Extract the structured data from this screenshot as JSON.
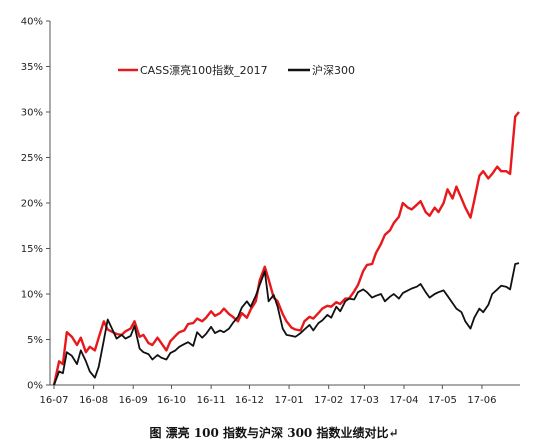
{
  "caption": "图   漂亮 100 指数与沪深 300 指数业绩对比↵",
  "chart_data": {
    "type": "line",
    "title": "",
    "xlabel": "",
    "ylabel": "",
    "ylim": [
      0,
      40
    ],
    "yticks": [
      "0%",
      "5%",
      "10%",
      "15%",
      "20%",
      "25%",
      "30%",
      "35%",
      "40%"
    ],
    "xticks": [
      "16-07",
      "16-08",
      "16-09",
      "16-10",
      "16-11",
      "16-12",
      "17-01",
      "17-02",
      "17-03",
      "17-04",
      "17-05",
      "17-06"
    ],
    "grid": false,
    "legend_position": "top-left",
    "x": [
      "2016-07-01",
      "2016-07-05",
      "2016-07-08",
      "2016-07-11",
      "2016-07-15",
      "2016-07-19",
      "2016-07-22",
      "2016-07-26",
      "2016-07-29",
      "2016-08-02",
      "2016-08-05",
      "2016-08-09",
      "2016-08-12",
      "2016-08-16",
      "2016-08-19",
      "2016-08-23",
      "2016-08-26",
      "2016-08-30",
      "2016-09-02",
      "2016-09-06",
      "2016-09-09",
      "2016-09-13",
      "2016-09-16",
      "2016-09-20",
      "2016-09-23",
      "2016-09-27",
      "2016-09-30",
      "2016-10-04",
      "2016-10-07",
      "2016-10-11",
      "2016-10-14",
      "2016-10-18",
      "2016-10-21",
      "2016-10-25",
      "2016-10-28",
      "2016-11-01",
      "2016-11-04",
      "2016-11-08",
      "2016-11-11",
      "2016-11-15",
      "2016-11-18",
      "2016-11-22",
      "2016-11-25",
      "2016-11-29",
      "2016-12-02",
      "2016-12-06",
      "2016-12-09",
      "2016-12-13",
      "2016-12-16",
      "2016-12-20",
      "2016-12-23",
      "2016-12-27",
      "2016-12-30",
      "2017-01-03",
      "2017-01-06",
      "2017-01-10",
      "2017-01-13",
      "2017-01-17",
      "2017-01-20",
      "2017-01-24",
      "2017-01-27",
      "2017-01-31",
      "2017-02-03",
      "2017-02-07",
      "2017-02-10",
      "2017-02-14",
      "2017-02-17",
      "2017-02-21",
      "2017-02-24",
      "2017-02-28",
      "2017-03-03",
      "2017-03-07",
      "2017-03-10",
      "2017-03-14",
      "2017-03-17",
      "2017-03-21",
      "2017-03-24",
      "2017-03-28",
      "2017-03-31",
      "2017-04-04",
      "2017-04-07",
      "2017-04-11",
      "2017-04-14",
      "2017-04-18",
      "2017-04-21",
      "2017-04-25",
      "2017-04-28",
      "2017-05-02",
      "2017-05-05",
      "2017-05-09",
      "2017-05-12",
      "2017-05-16",
      "2017-05-19",
      "2017-05-23",
      "2017-05-26",
      "2017-05-30",
      "2017-06-02",
      "2017-06-06",
      "2017-06-09",
      "2017-06-13",
      "2017-06-16",
      "2017-06-20",
      "2017-06-23",
      "2017-06-27",
      "2017-06-30"
    ],
    "series": [
      {
        "name": "CASS漂亮100指数_2017",
        "color": "#e8191c",
        "values": [
          0.0,
          2.6,
          2.3,
          5.8,
          5.3,
          4.4,
          5.2,
          3.6,
          4.2,
          3.8,
          5.2,
          7.0,
          6.1,
          5.8,
          5.6,
          5.5,
          5.9,
          6.2,
          7.0,
          5.3,
          5.5,
          4.6,
          4.4,
          5.2,
          4.6,
          3.8,
          4.8,
          5.4,
          5.8,
          6.0,
          6.7,
          6.8,
          7.3,
          7.0,
          7.4,
          8.1,
          7.6,
          7.9,
          8.4,
          7.8,
          7.5,
          7.0,
          7.9,
          7.4,
          8.3,
          9.2,
          11.5,
          13.0,
          11.6,
          9.6,
          9.2,
          7.8,
          7.0,
          6.3,
          6.1,
          6.0,
          7.0,
          7.5,
          7.3,
          7.9,
          8.4,
          8.7,
          8.6,
          9.1,
          8.9,
          9.5,
          9.5,
          10.3,
          11.0,
          12.5,
          13.2,
          13.3,
          14.5,
          15.5,
          16.5,
          17.0,
          17.8,
          18.5,
          20.0,
          19.5,
          19.3,
          19.8,
          20.2,
          19.0,
          18.6,
          19.5,
          19.0,
          20.0,
          21.5,
          20.5,
          21.8,
          20.5,
          19.5,
          18.4,
          20.3,
          23.0,
          23.5,
          22.7,
          23.2,
          24.0,
          23.5,
          23.5,
          23.2,
          29.5,
          30.0
        ]
      },
      {
        "name": "沪深300",
        "color": "#111111",
        "values": [
          0.0,
          1.5,
          1.3,
          3.6,
          3.2,
          2.3,
          3.8,
          2.6,
          1.5,
          0.8,
          2.0,
          4.9,
          7.2,
          6.0,
          5.1,
          5.5,
          5.1,
          5.4,
          6.5,
          4.0,
          3.6,
          3.4,
          2.8,
          3.3,
          3.0,
          2.8,
          3.5,
          3.8,
          4.2,
          4.5,
          4.7,
          4.3,
          5.8,
          5.2,
          5.6,
          6.4,
          5.7,
          6.0,
          5.8,
          6.2,
          6.8,
          7.5,
          8.5,
          9.2,
          8.6,
          9.8,
          11.0,
          12.5,
          9.2,
          9.9,
          8.6,
          6.2,
          5.5,
          5.4,
          5.3,
          5.7,
          6.1,
          6.6,
          6.0,
          6.8,
          7.1,
          7.7,
          7.4,
          8.6,
          8.1,
          9.2,
          9.5,
          9.4,
          10.2,
          10.5,
          10.2,
          9.6,
          9.8,
          10.0,
          9.2,
          9.7,
          10.0,
          9.5,
          10.1,
          10.4,
          10.6,
          10.8,
          11.1,
          10.2,
          9.6,
          10.0,
          10.2,
          10.4,
          9.8,
          9.0,
          8.4,
          8.0,
          7.0,
          6.2,
          7.4,
          8.4,
          8.0,
          8.8,
          10.0,
          10.5,
          10.9,
          10.8,
          10.5,
          13.3,
          13.4
        ]
      }
    ]
  }
}
